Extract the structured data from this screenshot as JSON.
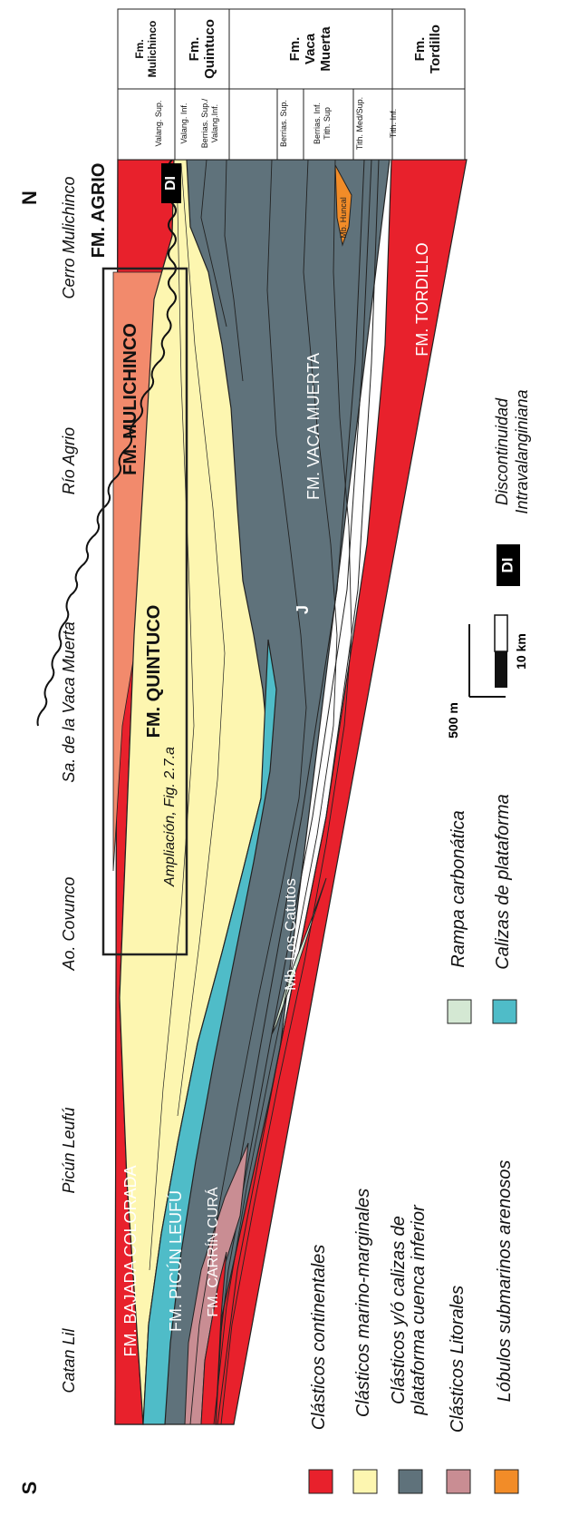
{
  "header": {
    "fm_mulichinco": [
      "Fm.",
      "Mulichinco"
    ],
    "fm_quintuco": [
      "Fm.",
      "Quintuco"
    ],
    "fm_vaca_muerta": [
      "Fm.",
      "Vaca",
      "Muerta"
    ],
    "fm_tordillo": [
      "Fm.",
      "Tordillo"
    ]
  },
  "ages": {
    "valang_sup": "Valang. Sup.",
    "valang_inf": "Valang. Inf.",
    "berrias_valang": [
      "Berrias. Sup./",
      "Valang.Inf."
    ],
    "berrias_sup": "Berrias. Sup.",
    "berrias_tith": [
      "Berrias. Inf.",
      "Tith. Sup"
    ],
    "tith_med": "Tith. Med/Sup.",
    "tith_inf": "Tith. Inf."
  },
  "localities": {
    "cerro_mulichinco": "Cerro Mulichinco",
    "rio_agrio": "Río Agrio",
    "sa_vaca_muerta": "Sa. de la Vaca Muerta",
    "ao_covunco": "Ao. Covunco",
    "picun_leufu": "Picún Leufú",
    "catan_lil": "Catan Lil"
  },
  "compass": {
    "north": "N",
    "south": "S"
  },
  "formations": {
    "agrio": "FM. AGRIO",
    "mulichinco": "FM. MULICHINCO",
    "quintuco": "FM. QUINTUCO",
    "vaca_muerta": "FM. VACA MUERTA",
    "tordillo": "FM. TORDILLO",
    "bajada_colorada": "FM. BAJADA COLORADA",
    "picun_leufu": "FM. PICÚN LEUFÚ",
    "carrin_cura": "FM. CARRÍN CURÁ",
    "los_catutos": "Mb. Los Catutos",
    "huncal": "Mb. Huncal",
    "j": "J"
  },
  "di_badge": "DI",
  "ampliacion": "Ampliación, Fig. 2.7.a",
  "scale": {
    "vertical": "500 m",
    "horizontal": "10 km"
  },
  "legend": {
    "items": [
      {
        "label": "Clásticos continentales",
        "color": "#e8212c"
      },
      {
        "label": "Clásticos marino-marginales",
        "color": "#fdf6b0"
      },
      {
        "label": [
          "Clásticos y/ó calizas de",
          "plataforma cuenca inferior"
        ],
        "color": "#5f727b"
      },
      {
        "label": "Clásticos Litorales",
        "color": "#c98d93"
      },
      {
        "label": "Lóbulos submarinos arenosos",
        "color": "#f28c28"
      },
      {
        "label": "Rampa carbonática",
        "color": "#d4e8d3"
      },
      {
        "label": "Calizas de plataforma",
        "color": "#4fbcc8"
      },
      {
        "label": [
          "Discontinuidad",
          "Intravalanginiana"
        ],
        "color": "#000000"
      }
    ]
  }
}
